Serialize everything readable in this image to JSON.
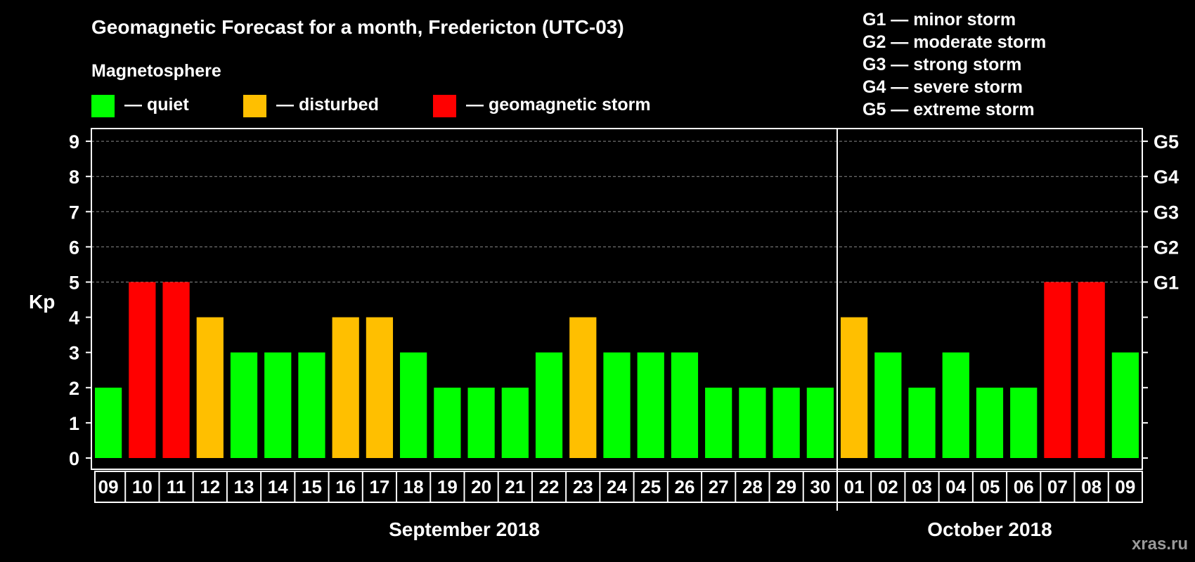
{
  "chart_data": {
    "type": "bar",
    "title": "Geomagnetic Forecast for a month, Fredericton (UTC-03)",
    "subtitle": "Magnetosphere",
    "ylabel": "Kp",
    "ylim": [
      0,
      9
    ],
    "yticks": [
      "0",
      "1",
      "2",
      "3",
      "4",
      "5",
      "6",
      "7",
      "8",
      "9"
    ],
    "right_ticks": [
      {
        "kp": 5,
        "label": "G1"
      },
      {
        "kp": 6,
        "label": "G2"
      },
      {
        "kp": 7,
        "label": "G3"
      },
      {
        "kp": 8,
        "label": "G4"
      },
      {
        "kp": 9,
        "label": "G5"
      }
    ],
    "grid": true,
    "categories": [
      "09",
      "10",
      "11",
      "12",
      "13",
      "14",
      "15",
      "16",
      "17",
      "18",
      "19",
      "20",
      "21",
      "22",
      "23",
      "24",
      "25",
      "26",
      "27",
      "28",
      "29",
      "30",
      "01",
      "02",
      "03",
      "04",
      "05",
      "06",
      "07",
      "08",
      "09"
    ],
    "values": [
      2,
      5,
      5,
      4,
      3,
      3,
      3,
      4,
      4,
      3,
      2,
      2,
      2,
      3,
      4,
      3,
      3,
      3,
      2,
      2,
      2,
      2,
      4,
      3,
      2,
      3,
      2,
      2,
      5,
      5,
      3
    ],
    "status": [
      "quiet",
      "storm",
      "storm",
      "disturbed",
      "quiet",
      "quiet",
      "quiet",
      "disturbed",
      "disturbed",
      "quiet",
      "quiet",
      "quiet",
      "quiet",
      "quiet",
      "disturbed",
      "quiet",
      "quiet",
      "quiet",
      "quiet",
      "quiet",
      "quiet",
      "quiet",
      "disturbed",
      "quiet",
      "quiet",
      "quiet",
      "quiet",
      "quiet",
      "storm",
      "storm",
      "quiet"
    ],
    "months": [
      {
        "label": "September 2018",
        "start_index": 0,
        "end_index": 21
      },
      {
        "label": "October 2018",
        "start_index": 22,
        "end_index": 30
      }
    ],
    "month_divider_after_index": 21,
    "legend": [
      {
        "key": "quiet",
        "label": "— quiet",
        "color": "#00ff00"
      },
      {
        "key": "disturbed",
        "label": "— disturbed",
        "color": "#ffbf00"
      },
      {
        "key": "storm",
        "label": "— geomagnetic storm",
        "color": "#ff0000"
      }
    ],
    "g_scale": [
      "G1 — minor storm",
      "G2 — moderate storm",
      "G3 — strong storm",
      "G4 — severe storm",
      "G5 — extreme storm"
    ]
  },
  "brand": "xras.ru"
}
